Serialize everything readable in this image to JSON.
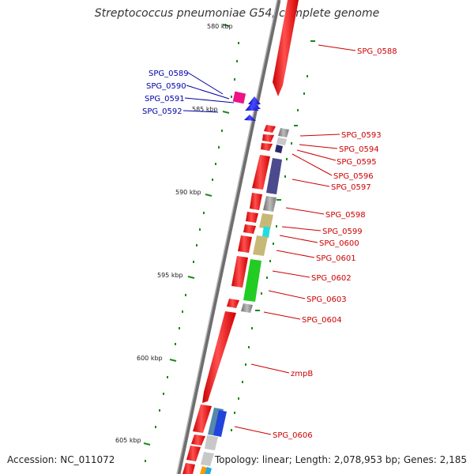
{
  "title": "Streptococcus pneumoniae G54, complete genome",
  "footer": {
    "accession": "Accession: NC_011072",
    "topology": "Topology: linear; Length: 2,078,953 bp; Genes: 2,185"
  },
  "ticks": [
    {
      "label": "580 kbp",
      "kbp": 580
    },
    {
      "label": "585 kbp",
      "kbp": 585
    },
    {
      "label": "590 kbp",
      "kbp": 590
    },
    {
      "label": "595 kbp",
      "kbp": 595
    },
    {
      "label": "600 kbp",
      "kbp": 600
    },
    {
      "label": "605 kbp",
      "kbp": 605
    }
  ],
  "gene_labels_right": [
    "SPG_0588",
    "SPG_0593",
    "SPG_0594",
    "SPG_0595",
    "SPG_0596",
    "SPG_0597",
    "SPG_0598",
    "SPG_0599",
    "SPG_0600",
    "SPG_0601",
    "SPG_0602",
    "SPG_0603",
    "SPG_0604",
    "zmpB",
    "SPG_0606"
  ],
  "gene_labels_left": [
    "SPG_0589",
    "SPG_0590",
    "SPG_0591",
    "SPG_0592"
  ],
  "colors": {
    "backbone": "#8c8c8c",
    "forward_gene": "#ee1111",
    "reverse_gene": "#1a1aee",
    "pink_gene": "#ee1188",
    "right_label": "#cc0000",
    "left_label": "#0000aa",
    "tick": "#1a8a1a",
    "domain_gray": "#999999",
    "domain_navy": "#3a3a8a",
    "domain_khaki": "#c8b878",
    "domain_cyan": "#22dddd",
    "domain_green": "#22cc22",
    "domain_blue": "#2244dd",
    "domain_steel": "#5588aa"
  }
}
